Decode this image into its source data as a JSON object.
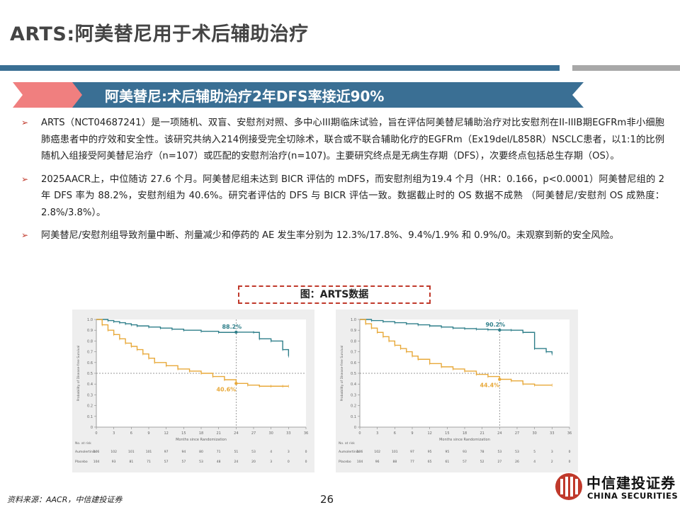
{
  "slide": {
    "title": "ARTS:阿美替尼用于术后辅助治疗",
    "banner": "阿美替尼:术后辅助治疗2年DFS率接近90%",
    "bullet_mark": "➢",
    "bullets": [
      "ARTS（NCT04687241）是一项随机、双盲、安慰剂对照、多中心III期临床试验，旨在评估阿美替尼辅助治疗对比安慰剂在II-IIIB期EGFRm非小细胞肺癌患者中的疗效和安全性。该研究共纳入214例接受完全切除术，联合或不联合辅助化疗的EGFRm（Ex19del/L858R）NSCLC患者，以1:1的比例随机入组接受阿美替尼治疗（n=107）或匹配的安慰剂治疗(n=107)。主要研究终点是无病生存期（DFS），次要终点包括总生存期（OS）。",
      "2025AACR上，中位随访 27.6 个月。阿美替尼组未达到 BICR 评估的 mDFS，而安慰剂组为19.4 个月（HR：0.166，p<0.0001）阿美替尼组的 2 年 DFS 率为 88.2%，安慰剂组为 40.6%。研究者评估的 DFS 与 BICR 评估一致。数据截止时的 OS 数据不成熟 （阿美替尼/安慰剂 OS 成熟度： 2.8%/3.8%）。",
      "阿美替尼/安慰剂组导致剂量中断、剂量减少和停药的 AE 发生率分别为 12.3%/17.8%、9.4%/1.9% 和 0.9%/0。未观察到新的安全风险。"
    ],
    "figure_caption": "图：ARTS数据",
    "source": "资料来源：AACR，中信建投证券",
    "page_number": "26",
    "logo_cn": "中信建投证券",
    "logo_en": "CHINA SECURITIES"
  },
  "colors": {
    "accent_blue": "#3a6f94",
    "accent_red": "#c0392b",
    "series_teal": "#2f7f8a",
    "series_orange": "#e8a93a",
    "panel_bg": "#eeeeee"
  },
  "chart_data": [
    {
      "type": "line",
      "ylabel": "Probability of Disease-free Survival",
      "xlabel": "Months since Randomization",
      "xlim": [
        0,
        36
      ],
      "ylim": [
        0,
        1.0
      ],
      "x_ticks": [
        "0",
        "3",
        "6",
        "9",
        "12",
        "15",
        "18",
        "21",
        "24",
        "27",
        "30",
        "33",
        "36"
      ],
      "y_ticks": [
        "0",
        "0.1",
        "0.2",
        "0.3",
        "0.4",
        "0.5",
        "0.6",
        "0.7",
        "0.8",
        "0.9",
        "1.0"
      ],
      "reference_lines": {
        "y": 0.5,
        "x": 24
      },
      "annotations": [
        "88.2%",
        "40.6%"
      ],
      "series": [
        {
          "x": [
            0,
            2,
            3,
            4,
            5,
            6,
            7,
            9,
            11,
            13,
            15,
            18,
            21,
            24,
            27,
            28,
            30,
            32,
            33
          ],
          "y": [
            1.0,
            0.99,
            0.98,
            0.97,
            0.96,
            0.95,
            0.94,
            0.93,
            0.92,
            0.91,
            0.9,
            0.89,
            0.88,
            0.882,
            0.88,
            0.82,
            0.8,
            0.72,
            0.66
          ]
        },
        {
          "x": [
            0,
            1,
            2,
            3,
            4,
            5,
            6,
            7,
            8,
            9,
            10,
            12,
            14,
            16,
            18,
            20,
            22,
            24,
            26,
            28,
            30,
            32,
            33
          ],
          "y": [
            1.0,
            0.95,
            0.9,
            0.86,
            0.82,
            0.78,
            0.75,
            0.72,
            0.68,
            0.64,
            0.6,
            0.57,
            0.54,
            0.52,
            0.5,
            0.47,
            0.44,
            0.406,
            0.39,
            0.38,
            0.38,
            0.38,
            0.38
          ]
        }
      ],
      "risk_table": {
        "title": "No. at risk",
        "rows": [
          {
            "label": "Aumolertinib",
            "values": [
              "106",
              "102",
              "101",
              "101",
              "97",
              "94",
              "80",
              "71",
              "51",
              "53",
              "4",
              "3",
              "0"
            ]
          },
          {
            "label": "Placebo",
            "values": [
              "104",
              "93",
              "81",
              "71",
              "57",
              "57",
              "53",
              "48",
              "24",
              "20",
              "3",
              "0",
              "0"
            ]
          }
        ]
      }
    },
    {
      "type": "line",
      "ylabel": "Probability of Disease-free Survival",
      "xlabel": "Months since Randomization",
      "xlim": [
        0,
        36
      ],
      "ylim": [
        0,
        1.0
      ],
      "x_ticks": [
        "0",
        "3",
        "6",
        "9",
        "12",
        "15",
        "18",
        "21",
        "24",
        "27",
        "30",
        "33",
        "36"
      ],
      "y_ticks": [
        "0",
        "0.1",
        "0.2",
        "0.3",
        "0.4",
        "0.5",
        "0.6",
        "0.7",
        "0.8",
        "0.9",
        "1.0"
      ],
      "reference_lines": {
        "y": 0.5,
        "x": 24
      },
      "annotations": [
        "90.2%",
        "44.4%"
      ],
      "series": [
        {
          "x": [
            0,
            2,
            4,
            6,
            8,
            10,
            12,
            14,
            16,
            18,
            20,
            22,
            24,
            26,
            28,
            30,
            32,
            33
          ],
          "y": [
            1.0,
            0.99,
            0.98,
            0.97,
            0.96,
            0.95,
            0.94,
            0.93,
            0.92,
            0.915,
            0.91,
            0.905,
            0.902,
            0.9,
            0.88,
            0.73,
            0.7,
            0.68
          ]
        },
        {
          "x": [
            0,
            1,
            2,
            3,
            4,
            5,
            6,
            7,
            8,
            9,
            10,
            12,
            14,
            16,
            18,
            20,
            22,
            24,
            26,
            28,
            30,
            33
          ],
          "y": [
            1.0,
            0.96,
            0.92,
            0.88,
            0.84,
            0.8,
            0.76,
            0.73,
            0.7,
            0.66,
            0.63,
            0.59,
            0.56,
            0.54,
            0.52,
            0.49,
            0.47,
            0.444,
            0.43,
            0.4,
            0.39,
            0.39
          ]
        }
      ],
      "risk_table": {
        "title": "No. at risk",
        "rows": [
          {
            "label": "Aumolertinib",
            "values": [
              "106",
              "102",
              "101",
              "97",
              "95",
              "95",
              "93",
              "78",
              "53",
              "53",
              "5",
              "3",
              "0"
            ]
          },
          {
            "label": "Placebo",
            "values": [
              "104",
              "96",
              "88",
              "77",
              "65",
              "61",
              "57",
              "52",
              "27",
              "26",
              "4",
              "2",
              "0"
            ]
          }
        ]
      }
    }
  ]
}
